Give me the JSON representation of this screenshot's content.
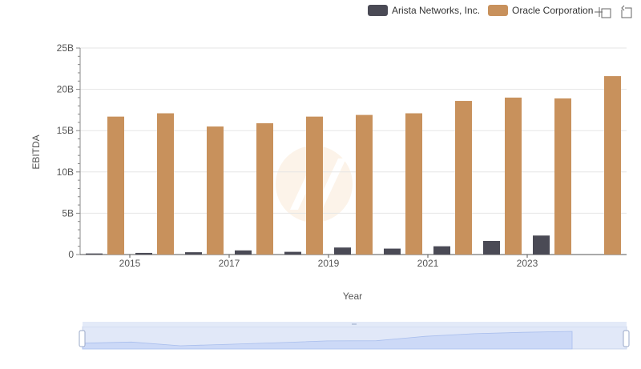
{
  "chart_data": {
    "type": "bar",
    "title": "",
    "xlabel": "Year",
    "ylabel": "EBITDA",
    "ylim": [
      0,
      25000000000
    ],
    "y_ticks": [
      {
        "value": 0,
        "label": "0"
      },
      {
        "value": 5000000000,
        "label": "5B"
      },
      {
        "value": 10000000000,
        "label": "10B"
      },
      {
        "value": 15000000000,
        "label": "15B"
      },
      {
        "value": 20000000000,
        "label": "20B"
      },
      {
        "value": 25000000000,
        "label": "25B"
      }
    ],
    "categories": [
      "2014",
      "2015",
      "2016",
      "2017",
      "2018",
      "2019",
      "2020",
      "2021",
      "2022",
      "2023",
      "2024"
    ],
    "x_tick_labels": [
      "2015",
      "2017",
      "2019",
      "2021",
      "2023"
    ],
    "legend_position": "top-right",
    "series": [
      {
        "name": "Arista Networks, Inc.",
        "color": "#4a4a55",
        "values": [
          130000000,
          200000000,
          280000000,
          500000000,
          330000000,
          850000000,
          720000000,
          1000000000,
          1650000000,
          2300000000,
          null
        ]
      },
      {
        "name": "Oracle Corporation",
        "color": "#c8915c",
        "values": [
          16700000000,
          17100000000,
          15500000000,
          15900000000,
          16700000000,
          16900000000,
          17100000000,
          18600000000,
          19000000000,
          18900000000,
          21600000000
        ]
      }
    ]
  },
  "toolbar": {
    "zoom_icon": "zoom-select-icon",
    "restore_icon": "restore-icon"
  }
}
